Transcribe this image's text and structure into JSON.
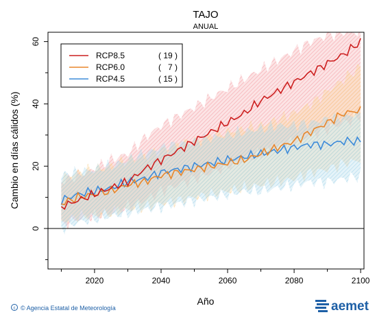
{
  "chart_data": {
    "type": "line",
    "title": "TAJO",
    "subtitle": "ANUAL",
    "xlabel": "Año",
    "ylabel": "Cambio en días cálidos (%)",
    "xlim": [
      2006,
      2101
    ],
    "ylim": [
      -13,
      63
    ],
    "xticks": [
      2020,
      2040,
      2060,
      2080,
      2100
    ],
    "yticks": [
      0,
      20,
      40,
      60
    ],
    "grid": false,
    "legend_position": "top-left",
    "series": [
      {
        "name": "RCP8.5",
        "count_label": "( 19 )",
        "color": "#cc1f1f",
        "band_color": "#f4a3a8",
        "x": [
          2010,
          2015,
          2020,
          2025,
          2030,
          2035,
          2040,
          2045,
          2050,
          2055,
          2060,
          2065,
          2070,
          2075,
          2080,
          2085,
          2090,
          2095,
          2100
        ],
        "y": [
          7,
          9,
          11,
          13,
          15,
          19,
          22,
          25,
          28,
          31,
          34,
          37,
          41,
          44,
          47,
          50,
          53,
          56,
          60
        ],
        "lower": [
          1,
          3,
          4,
          5,
          7,
          9,
          12,
          14,
          16,
          18,
          20,
          22,
          24,
          26,
          28,
          30,
          32,
          34,
          36
        ],
        "upper": [
          15,
          17,
          19,
          22,
          24,
          29,
          33,
          36,
          39,
          42,
          45,
          48,
          51,
          54,
          57,
          60,
          62,
          63,
          63
        ]
      },
      {
        "name": "RCP6.0",
        "count_label": "(   7 )",
        "color": "#e8862a",
        "band_color": "#f8cf8f",
        "x": [
          2010,
          2015,
          2020,
          2025,
          2030,
          2035,
          2040,
          2045,
          2050,
          2055,
          2060,
          2065,
          2070,
          2075,
          2080,
          2085,
          2090,
          2095,
          2100
        ],
        "y": [
          8,
          10,
          11,
          12,
          14,
          15,
          17,
          18,
          19,
          20,
          21,
          22,
          24,
          26,
          28,
          31,
          34,
          37,
          38
        ],
        "lower": [
          2,
          4,
          4,
          5,
          6,
          7,
          8,
          9,
          10,
          11,
          12,
          13,
          14,
          15,
          16,
          18,
          19,
          21,
          22
        ],
        "upper": [
          16,
          18,
          19,
          20,
          22,
          23,
          25,
          27,
          28,
          30,
          31,
          32,
          33,
          35,
          37,
          40,
          44,
          48,
          52
        ]
      },
      {
        "name": "RCP4.5",
        "count_label": "( 15 )",
        "color": "#3d8bd9",
        "band_color": "#a9d7ea",
        "x": [
          2010,
          2015,
          2020,
          2025,
          2030,
          2035,
          2040,
          2045,
          2050,
          2055,
          2060,
          2065,
          2070,
          2075,
          2080,
          2085,
          2090,
          2095,
          2100
        ],
        "y": [
          9,
          11,
          12,
          13,
          15,
          16,
          18,
          19,
          20,
          21,
          22,
          23,
          24,
          25,
          26,
          27,
          27,
          28,
          28
        ],
        "lower": [
          0,
          2,
          3,
          4,
          5,
          6,
          7,
          8,
          9,
          10,
          11,
          12,
          12,
          13,
          14,
          15,
          15,
          16,
          17
        ],
        "upper": [
          17,
          18,
          19,
          20,
          22,
          24,
          26,
          27,
          28,
          29,
          30,
          31,
          32,
          33,
          33,
          34,
          35,
          36,
          37
        ]
      }
    ]
  },
  "footer": {
    "credit": "© Agencia Estatal de Meteorología",
    "logo_text": "aemet"
  }
}
